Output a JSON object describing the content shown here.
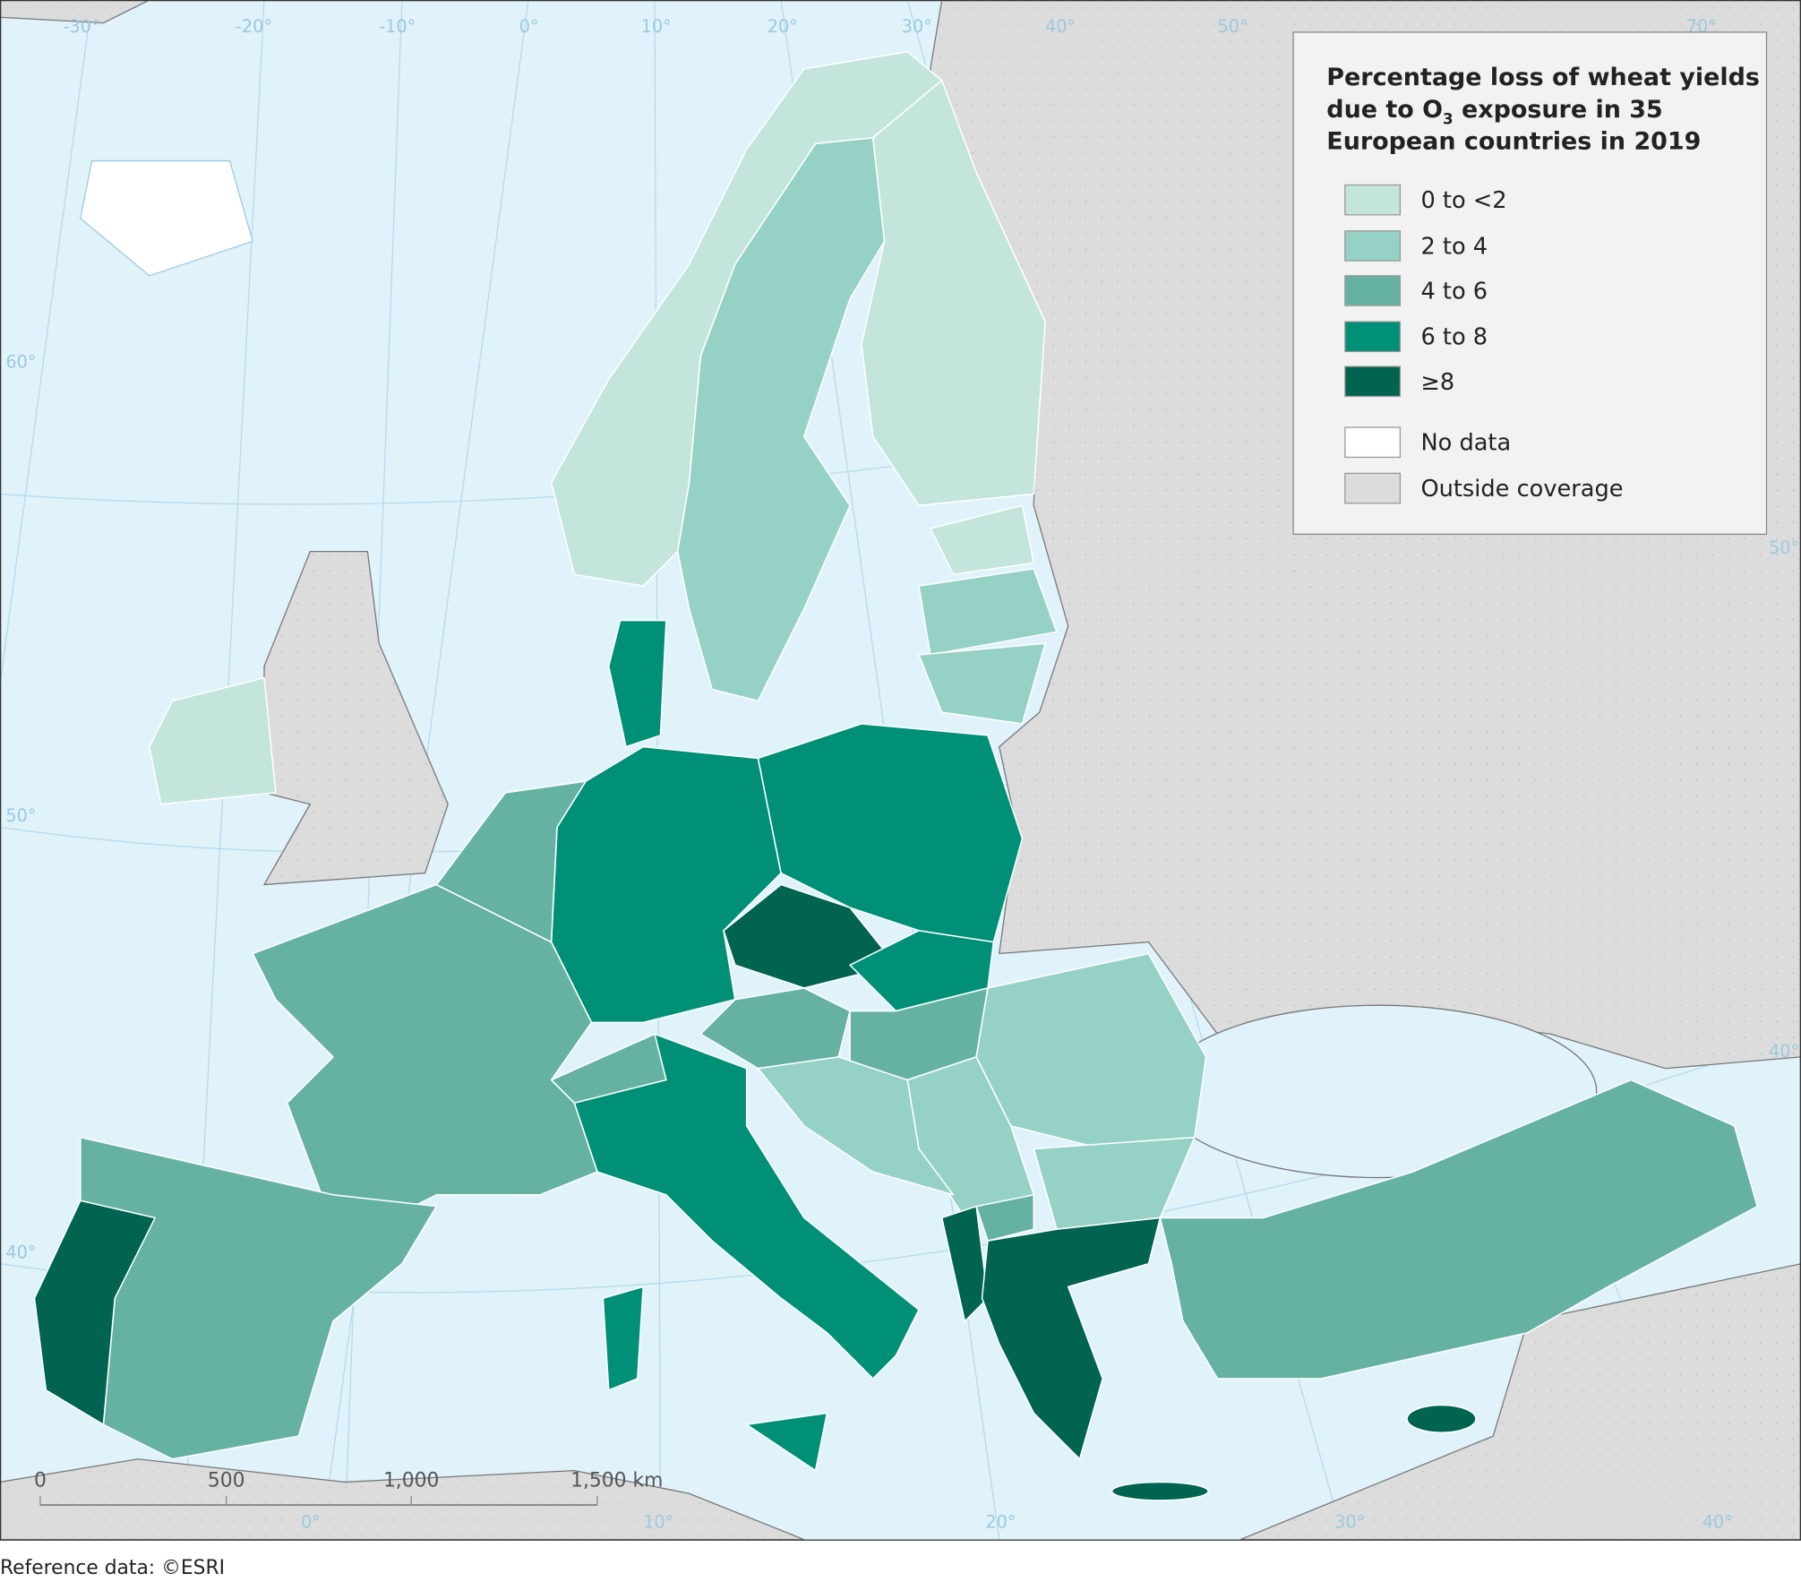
{
  "title": [
    "Percentage loss of wheat yields",
    "due to O",
    "3",
    " exposure in 35",
    "European countries in 2019"
  ],
  "legend": [
    {
      "label": "0 to <2",
      "color": "#c3e5dc"
    },
    {
      "label": "2 to 4",
      "color": "#95d1c4"
    },
    {
      "label": "4 to 6",
      "color": "#66b2a2"
    },
    {
      "label": "6 to 8",
      "color": "#008f77"
    },
    {
      "label": "≥8",
      "color": "#006450"
    },
    {
      "label": "No data",
      "color": "#ffffff"
    },
    {
      "label": "Outside coverage",
      "color": "#dcdcdc"
    }
  ],
  "graticule": {
    "longitude": [
      "-30°",
      "-20°",
      "-10°",
      "0°",
      "10°",
      "20°",
      "30°",
      "40°",
      "50°",
      "70°",
      "0°",
      "10°",
      "20°",
      "30°",
      "40°"
    ],
    "latitude": [
      "60°",
      "50°",
      "40°",
      "50°",
      "40°"
    ]
  },
  "scale_bar": [
    "0",
    "500",
    "1,000",
    "1,500 km"
  ],
  "footer": "Reference data: ©ESRI"
}
